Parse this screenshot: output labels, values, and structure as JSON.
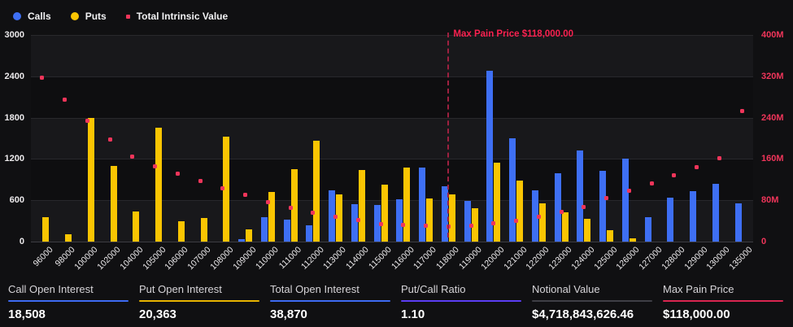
{
  "chart_data": {
    "type": "bar",
    "categories": [
      "96000",
      "98000",
      "100000",
      "102000",
      "104000",
      "105000",
      "106000",
      "107000",
      "108000",
      "109000",
      "110000",
      "111000",
      "112000",
      "113000",
      "114000",
      "115000",
      "116000",
      "117000",
      "118000",
      "119000",
      "120000",
      "121000",
      "122000",
      "123000",
      "124000",
      "125000",
      "126000",
      "127000",
      "128000",
      "129000",
      "130000",
      "135000"
    ],
    "series": [
      {
        "name": "Calls",
        "type": "bar",
        "axis": "left",
        "color": "#3e6ff4",
        "values": [
          0,
          0,
          0,
          0,
          0,
          0,
          0,
          0,
          0,
          30,
          350,
          320,
          240,
          750,
          540,
          530,
          620,
          1080,
          800,
          590,
          2480,
          1500,
          750,
          990,
          1320,
          1030,
          1200,
          350,
          640,
          730,
          840,
          550
        ]
      },
      {
        "name": "Puts",
        "type": "bar",
        "axis": "left",
        "color": "#fac502",
        "values": [
          350,
          110,
          1800,
          1100,
          440,
          1650,
          290,
          345,
          1520,
          175,
          720,
          1050,
          1470,
          680,
          1040,
          830,
          1070,
          630,
          680,
          490,
          1150,
          880,
          560,
          420,
          330,
          160,
          50,
          0,
          0,
          0,
          0,
          0
        ]
      },
      {
        "name": "Total Intrinsic Value",
        "type": "scatter",
        "axis": "right",
        "color": "#f0355a",
        "values_millions": [
          317,
          275,
          234,
          197,
          164,
          146,
          132,
          117,
          103,
          91,
          77,
          65,
          56,
          48,
          41,
          34,
          32,
          31,
          29,
          31,
          36,
          40,
          48,
          58,
          67,
          84,
          98,
          112,
          128,
          144,
          161,
          252
        ]
      }
    ],
    "left_axis": {
      "ticks": [
        "3000",
        "2400",
        "1800",
        "1200",
        "600",
        "0"
      ],
      "max": 3000
    },
    "right_axis": {
      "ticks": [
        "400M",
        "320M",
        "240M",
        "160M",
        "80M",
        "0"
      ],
      "max_millions": 400
    },
    "annotation": {
      "label": "Max Pain Price $118,000.00",
      "category": "118000"
    },
    "legend": [
      {
        "label": "Calls",
        "color": "#3e6ff4",
        "marker": "circle"
      },
      {
        "label": "Puts",
        "color": "#fac502",
        "marker": "circle"
      },
      {
        "label": "Total Intrinsic Value",
        "color": "#f0355a",
        "marker": "square"
      }
    ],
    "grid": true,
    "legend_position": "top-left"
  },
  "stats": [
    {
      "label": "Call Open Interest",
      "value": "18,508",
      "underline_color": "#3d6bf2"
    },
    {
      "label": "Put Open Interest",
      "value": "20,363",
      "underline_color": "#e8b400"
    },
    {
      "label": "Total Open Interest",
      "value": "38,870",
      "underline_color": "#3d6bf2"
    },
    {
      "label": "Put/Call Ratio",
      "value": "1.10",
      "underline_color": "#5b3df5"
    },
    {
      "label": "Notional Value",
      "value": "$4,718,843,626.46",
      "underline_color": "#3f3f46"
    },
    {
      "label": "Max Pain Price",
      "value": "$118,000.00",
      "underline_color": "#d92550"
    }
  ]
}
